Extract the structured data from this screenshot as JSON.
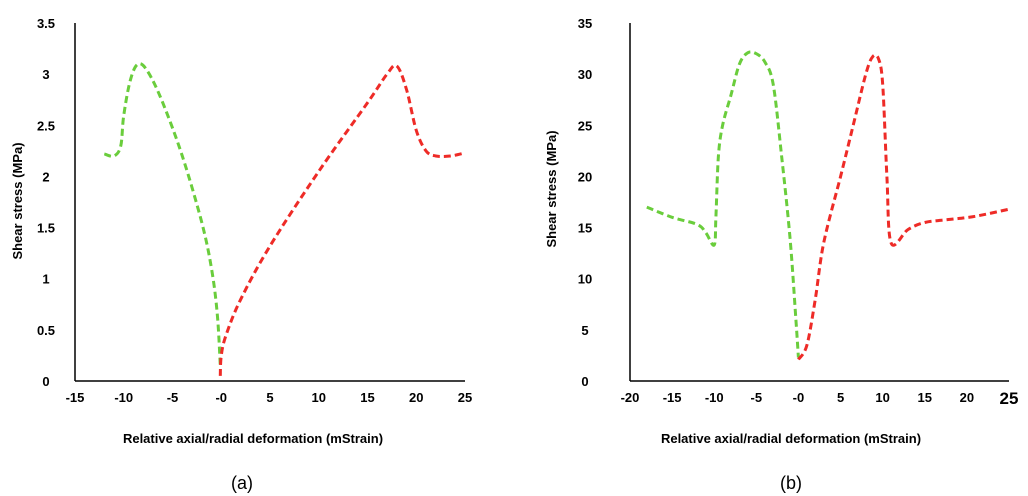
{
  "chart_data": [
    {
      "panel_label": "(a)",
      "type": "line",
      "xlabel": "Relative axial/radial deformation (mStrain)",
      "ylabel": "Shear stress (MPa)",
      "xlim": [
        -15,
        25
      ],
      "ylim": [
        0,
        3.5
      ],
      "x_ticks": [
        "-15",
        "-10",
        "-5",
        "-0",
        "5",
        "10",
        "15",
        "20",
        "25"
      ],
      "y_ticks": [
        "0",
        "0.5",
        "1",
        "1.5",
        "2",
        "2.5",
        "3",
        "3.5"
      ],
      "series": [
        {
          "color": "#6acd3c",
          "points": [
            [
              -12,
              2.22
            ],
            [
              -11,
              2.2
            ],
            [
              -10.3,
              2.3
            ],
            [
              -10,
              2.6
            ],
            [
              -9.3,
              2.95
            ],
            [
              -8.5,
              3.1
            ],
            [
              -7.5,
              3.02
            ],
            [
              -6,
              2.72
            ],
            [
              -4,
              2.2
            ],
            [
              -2,
              1.55
            ],
            [
              -1,
              1.1
            ],
            [
              -0.4,
              0.65
            ],
            [
              -0.1,
              0.15
            ]
          ]
        },
        {
          "color": "#ee2b27",
          "points": [
            [
              -0.1,
              0.05
            ],
            [
              0,
              0.25
            ],
            [
              0.5,
              0.45
            ],
            [
              2,
              0.8
            ],
            [
              5,
              1.32
            ],
            [
              10,
              2.05
            ],
            [
              15,
              2.72
            ],
            [
              17,
              3.0
            ],
            [
              18,
              3.08
            ],
            [
              19,
              2.85
            ],
            [
              20,
              2.45
            ],
            [
              21,
              2.25
            ],
            [
              22,
              2.2
            ],
            [
              23.5,
              2.2
            ],
            [
              25,
              2.23
            ]
          ]
        }
      ]
    },
    {
      "panel_label": "(b)",
      "type": "line",
      "xlabel": "Relative axial/radial deformation (mStrain)",
      "ylabel": "Shear stress (MPa)",
      "xlim": [
        -20,
        25
      ],
      "ylim": [
        0,
        35
      ],
      "x_ticks": [
        "-20",
        "-15",
        "-10",
        "-5",
        "-0",
        "5",
        "10",
        "15",
        "20",
        "25"
      ],
      "y_ticks": [
        "0",
        "5",
        "10",
        "15",
        "20",
        "25",
        "30",
        "35"
      ],
      "series": [
        {
          "color": "#6acd3c",
          "points": [
            [
              -18,
              17
            ],
            [
              -15,
              16
            ],
            [
              -12,
              15.3
            ],
            [
              -11,
              14.5
            ],
            [
              -10,
              13.3
            ],
            [
              -9.8,
              16
            ],
            [
              -9.5,
              22
            ],
            [
              -9,
              25
            ],
            [
              -8,
              28
            ],
            [
              -7,
              31
            ],
            [
              -6,
              32.1
            ],
            [
              -5,
              32
            ],
            [
              -4,
              31.2
            ],
            [
              -3,
              29
            ],
            [
              -2,
              22
            ],
            [
              -1,
              14
            ],
            [
              -0.3,
              6
            ],
            [
              0,
              2.3
            ]
          ]
        },
        {
          "color": "#ee2b27",
          "points": [
            [
              0,
              2.1
            ],
            [
              1,
              3.5
            ],
            [
              2,
              8
            ],
            [
              3,
              13.5
            ],
            [
              5,
              20
            ],
            [
              6.5,
              25
            ],
            [
              8,
              30
            ],
            [
              8.8,
              31.7
            ],
            [
              9.5,
              31.5
            ],
            [
              10,
              29
            ],
            [
              10.5,
              20
            ],
            [
              11,
              13.5
            ],
            [
              13,
              14.8
            ],
            [
              15,
              15.5
            ],
            [
              18,
              15.8
            ],
            [
              21,
              16.1
            ],
            [
              25,
              16.8
            ]
          ]
        }
      ]
    }
  ]
}
